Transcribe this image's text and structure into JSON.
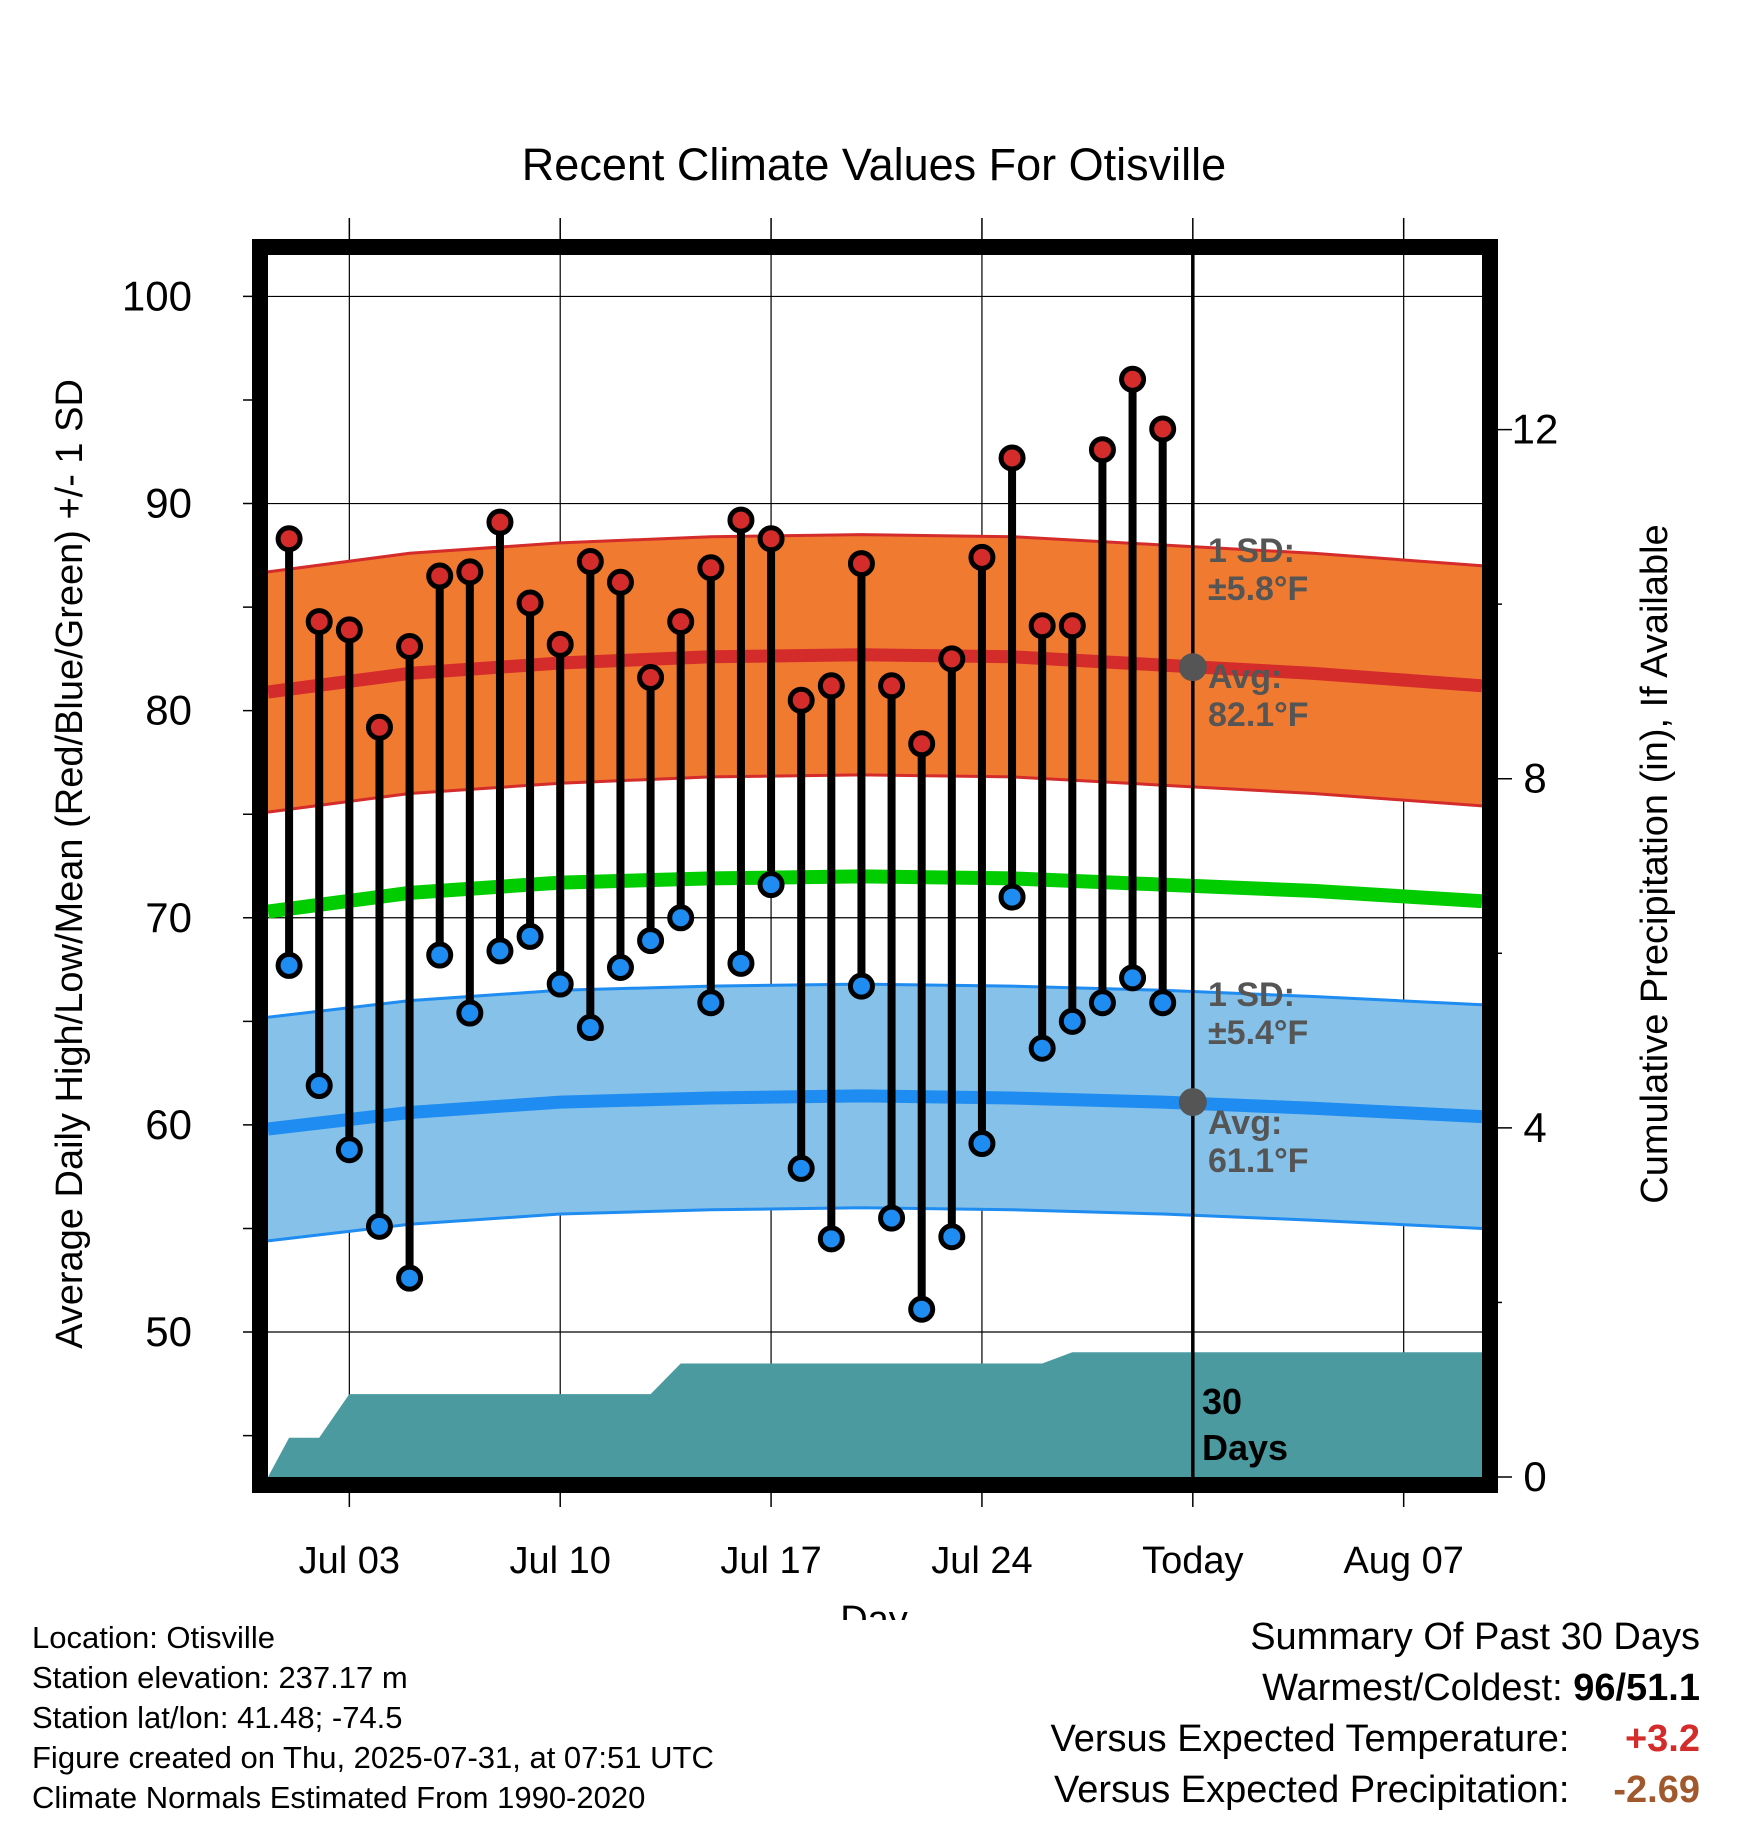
{
  "chart_data": {
    "type": "line",
    "title": "Recent Climate Values For Otisville",
    "xlabel": "Day",
    "ylabel": "Average Daily High/Low/Mean (Red/Blue/Green) +/- 1 SD",
    "y2label": "Cumulative Precipitation (in), If Available",
    "ylim": [
      43,
      102
    ],
    "y2lim": [
      0,
      14
    ],
    "yticks": [
      "50",
      "60",
      "70",
      "80",
      "90",
      "100"
    ],
    "y2ticks": [
      "0",
      "4",
      "8",
      "12"
    ],
    "xticks": [
      {
        "day": 3,
        "label": "Jul 03"
      },
      {
        "day": 10,
        "label": "Jul 10"
      },
      {
        "day": 17,
        "label": "Jul 17"
      },
      {
        "day": 24,
        "label": "Jul 24"
      },
      {
        "day": 31,
        "label": "Today"
      },
      {
        "day": 38,
        "label": "Aug 07"
      }
    ],
    "xlim": [
      0.3,
      40.6
    ],
    "grid": true,
    "today_day": 31,
    "days": [
      1,
      2,
      3,
      4,
      5,
      6,
      7,
      8,
      9,
      10,
      11,
      12,
      13,
      14,
      15,
      16,
      17,
      18,
      19,
      20,
      21,
      22,
      23,
      24,
      25,
      26,
      27,
      28,
      29,
      30
    ],
    "highs": [
      88.3,
      84.3,
      83.9,
      79.2,
      83.1,
      86.5,
      86.7,
      89.1,
      85.2,
      83.2,
      87.2,
      86.2,
      81.6,
      84.3,
      86.9,
      89.2,
      88.3,
      80.5,
      81.2,
      87.1,
      81.2,
      78.4,
      82.5,
      87.4,
      92.2,
      84.1,
      84.1,
      92.6,
      96,
      93.6
    ],
    "lows": [
      67.7,
      61.9,
      58.8,
      55.1,
      52.6,
      68.2,
      65.4,
      68.4,
      69.1,
      66.8,
      64.7,
      67.6,
      68.9,
      70,
      65.9,
      67.8,
      71.6,
      57.9,
      54.5,
      66.7,
      55.5,
      51.1,
      54.6,
      59.1,
      71,
      63.7,
      65,
      65.9,
      67.1,
      65.9
    ],
    "normal_curve_x": [
      0.3,
      5,
      10,
      15,
      20,
      25,
      30,
      35,
      40.6
    ],
    "normal_high": [
      80.9,
      81.8,
      82.3,
      82.6,
      82.7,
      82.6,
      82.2,
      81.8,
      81.2
    ],
    "normal_low": [
      59.8,
      60.6,
      61.1,
      61.3,
      61.4,
      61.3,
      61.1,
      60.8,
      60.4
    ],
    "normal_mean": [
      70.3,
      71.2,
      71.7,
      71.9,
      72.0,
      71.9,
      71.6,
      71.3,
      70.8
    ],
    "high_sd": 5.8,
    "low_sd": 5.4,
    "precip_x": [
      0.3,
      1,
      2,
      3,
      4,
      5,
      6,
      7,
      8,
      9,
      10,
      11,
      12,
      13,
      14,
      15,
      16,
      17,
      18,
      19,
      20,
      21,
      22,
      23,
      24,
      25,
      26,
      27,
      28,
      29,
      30,
      31,
      35,
      40.6
    ],
    "precip": [
      0,
      0.45,
      0.45,
      0.95,
      0.95,
      0.95,
      0.95,
      0.95,
      0.95,
      0.95,
      0.95,
      0.95,
      0.95,
      0.95,
      1.3,
      1.3,
      1.3,
      1.3,
      1.3,
      1.3,
      1.3,
      1.3,
      1.3,
      1.3,
      1.3,
      1.3,
      1.3,
      1.43,
      1.43,
      1.43,
      1.43,
      1.43,
      1.43,
      1.43
    ],
    "annotations": {
      "high_sd_line1": "1 SD:",
      "high_sd_line2": "±5.8°F",
      "high_avg_line1": "Avg:",
      "high_avg_line2": "82.1°F",
      "low_sd_line1": "1 SD:",
      "low_sd_line2": "±5.4°F",
      "low_avg_line1": "Avg:",
      "low_avg_line2": "61.1°F",
      "days_line1": "30",
      "days_line2": "Days",
      "high_avg_value": 82.1,
      "low_avg_value": 61.1
    },
    "colors": {
      "high_band": "#f07a30",
      "high_line": "#d42b2b",
      "low_band": "#85c1e9",
      "low_line": "#1e8cf0",
      "mean_line": "#00cc00",
      "precip": "#4a9aa0",
      "annotation": "#555555"
    }
  },
  "info": {
    "location": "Location: Otisville",
    "elevation": "Station elevation: 237.17 m",
    "latlon": "Station lat/lon: 41.48; -74.5",
    "created": "Figure created on Thu, 2025-07-31, at 07:51 UTC",
    "normals": "Climate Normals Estimated From 1990-2020"
  },
  "summary": {
    "title": "Summary Of Past 30 Days",
    "warm_cold_label": "Warmest/Coldest:",
    "warm_cold_value": "96/51.1",
    "temp_label": "Versus Expected Temperature:",
    "temp_value": "+3.2",
    "precip_label": "Versus Expected Precipitation:",
    "precip_value": "-2.69"
  }
}
